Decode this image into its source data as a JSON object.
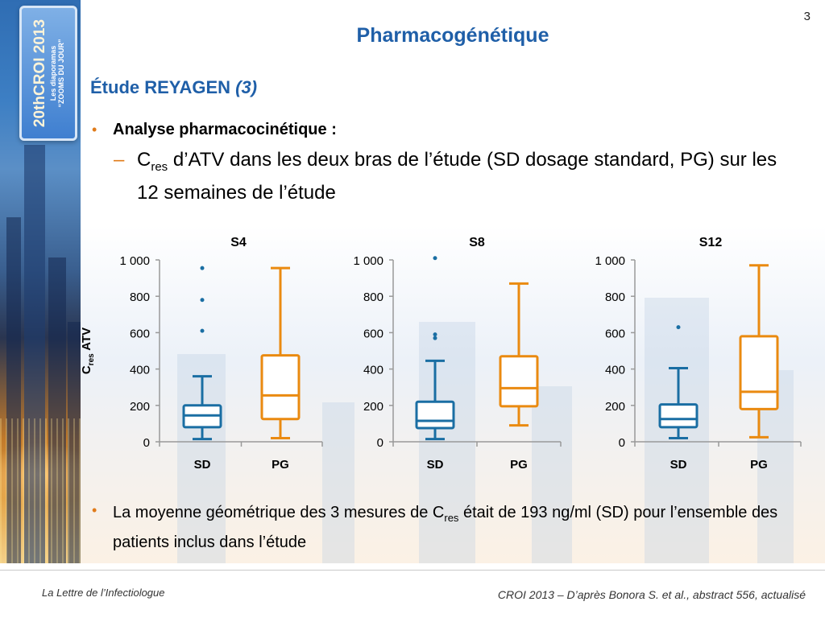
{
  "slide": {
    "number": "3",
    "title": "Pharmacogénétique",
    "section_title": "Étude REYAGEN",
    "section_title_suffix": "(3)",
    "badge": {
      "main": "20thCROI 2013",
      "sub": "Les diaporamas",
      "sub2": "“ZOOMS DU JOUR”"
    }
  },
  "bullets": {
    "b1": "Analyse pharmacocinétique :",
    "sub1_c": "C",
    "sub1_sub": "res",
    "sub1_rest": " d’ATV dans les deux bras de l’étude (SD dosage standard, PG) sur les 12 semaines de l’étude",
    "b2_pre": "La moyenne géométrique des 3 mesures de C",
    "b2_sub": "res",
    "b2_rest": " était de 193 ng/ml (SD) pour l’ensemble des patients inclus dans l’étude"
  },
  "footer": {
    "left": "La Lettre de l’Infectiologue",
    "right": "CROI 2013 – D’après Bonora S. et al., abstract 556, actualisé"
  },
  "colors": {
    "SD": "#1a6ea3",
    "PG": "#ea8a10",
    "title": "#1f5fa8",
    "bullet": "#e07b1a"
  },
  "chart_data": [
    {
      "type": "boxplot",
      "title": "S4",
      "ylabel": "Cres ATV",
      "ylim": [
        0,
        1000
      ],
      "yticks": [
        "0",
        "200",
        "400",
        "600",
        "800",
        "1 000"
      ],
      "categories": [
        "SD",
        "PG"
      ],
      "series": [
        {
          "name": "SD",
          "min": 15,
          "q1": 80,
          "median": 145,
          "q3": 200,
          "max": 360,
          "outliers": [
            610,
            780,
            955
          ]
        },
        {
          "name": "PG",
          "min": 20,
          "q1": 125,
          "median": 255,
          "q3": 475,
          "max": 955,
          "outliers": []
        }
      ]
    },
    {
      "type": "boxplot",
      "title": "S8",
      "ylim": [
        0,
        1000
      ],
      "yticks": [
        "0",
        "200",
        "400",
        "600",
        "800",
        "1 000"
      ],
      "categories": [
        "SD",
        "PG"
      ],
      "series": [
        {
          "name": "SD",
          "min": 15,
          "q1": 75,
          "median": 115,
          "q3": 220,
          "max": 445,
          "outliers": [
            570,
            590,
            1010
          ]
        },
        {
          "name": "PG",
          "min": 90,
          "q1": 195,
          "median": 295,
          "q3": 470,
          "max": 870,
          "outliers": []
        }
      ]
    },
    {
      "type": "boxplot",
      "title": "S12",
      "ylim": [
        0,
        1000
      ],
      "yticks": [
        "0",
        "200",
        "400",
        "600",
        "800",
        "1 000"
      ],
      "categories": [
        "SD",
        "PG"
      ],
      "series": [
        {
          "name": "SD",
          "min": 20,
          "q1": 80,
          "median": 125,
          "q3": 205,
          "max": 405,
          "outliers": [
            630
          ]
        },
        {
          "name": "PG",
          "min": 25,
          "q1": 180,
          "median": 275,
          "q3": 580,
          "max": 970,
          "outliers": []
        }
      ]
    }
  ]
}
